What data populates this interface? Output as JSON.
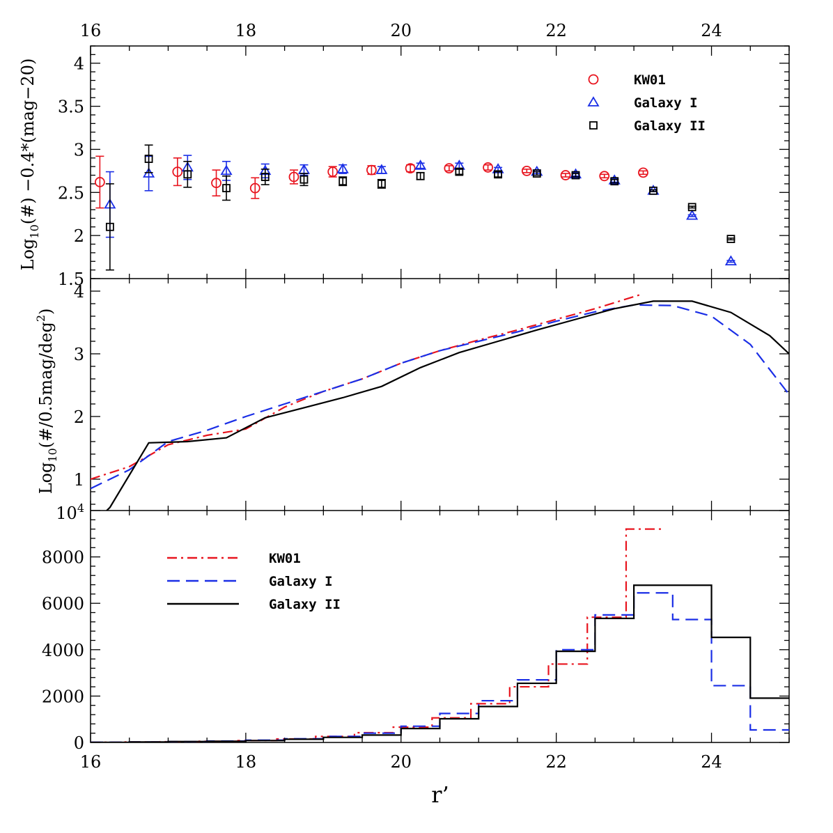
{
  "colors": {
    "kw01": "#e8141e",
    "galaxy1": "#1a2ee6",
    "galaxy2": "#000000"
  },
  "chart_data": [
    {
      "type": "scatter",
      "panel": "top",
      "ylabel": "Log10(#) −0.4*(mag−20)",
      "ylabel_parts": {
        "pre": "Log",
        "sub": "10",
        "post": "(#)  −0.4*(mag−20)"
      },
      "xlim": [
        16,
        25
      ],
      "ylim": [
        1.5,
        4.2
      ],
      "xticks": [
        16,
        18,
        20,
        22,
        24
      ],
      "yticks": [
        1.5,
        2,
        2.5,
        3,
        3.5,
        4
      ],
      "ytick_labels": [
        "1.5",
        "2",
        "2.5",
        "3",
        "3.5",
        "4"
      ],
      "legend": {
        "position": "top-right",
        "entries": [
          "KW01",
          "Galaxy I",
          "Galaxy II"
        ]
      },
      "series": [
        {
          "name": "KW01",
          "marker": "circle",
          "color_key": "kw01",
          "points": [
            {
              "x": 16.12,
              "y": 2.62,
              "err": 0.3
            },
            {
              "x": 17.12,
              "y": 2.74,
              "err": 0.16
            },
            {
              "x": 17.62,
              "y": 2.61,
              "err": 0.15
            },
            {
              "x": 18.12,
              "y": 2.55,
              "err": 0.12
            },
            {
              "x": 18.62,
              "y": 2.68,
              "err": 0.08
            },
            {
              "x": 19.12,
              "y": 2.74,
              "err": 0.06
            },
            {
              "x": 19.62,
              "y": 2.76,
              "err": 0.05
            },
            {
              "x": 20.12,
              "y": 2.78,
              "err": 0.04
            },
            {
              "x": 20.62,
              "y": 2.78,
              "err": 0.03
            },
            {
              "x": 21.12,
              "y": 2.79,
              "err": 0.03
            },
            {
              "x": 21.62,
              "y": 2.75,
              "err": 0.02
            },
            {
              "x": 22.12,
              "y": 2.7,
              "err": 0.02
            },
            {
              "x": 22.62,
              "y": 2.69,
              "err": 0.02
            },
            {
              "x": 23.12,
              "y": 2.73,
              "err": 0.02
            }
          ]
        },
        {
          "name": "Galaxy I",
          "marker": "triangle",
          "color_key": "galaxy1",
          "points": [
            {
              "x": 16.25,
              "y": 2.36,
              "err": 0.38
            },
            {
              "x": 16.75,
              "y": 2.72,
              "err": 0.2
            },
            {
              "x": 17.25,
              "y": 2.79,
              "err": 0.14
            },
            {
              "x": 17.75,
              "y": 2.75,
              "err": 0.11
            },
            {
              "x": 18.25,
              "y": 2.75,
              "err": 0.08
            },
            {
              "x": 18.75,
              "y": 2.76,
              "err": 0.06
            },
            {
              "x": 19.25,
              "y": 2.77,
              "err": 0.05
            },
            {
              "x": 19.75,
              "y": 2.76,
              "err": 0.04
            },
            {
              "x": 20.25,
              "y": 2.81,
              "err": 0.03
            },
            {
              "x": 20.75,
              "y": 2.81,
              "err": 0.03
            },
            {
              "x": 21.25,
              "y": 2.77,
              "err": 0.02
            },
            {
              "x": 21.75,
              "y": 2.74,
              "err": 0.02
            },
            {
              "x": 22.25,
              "y": 2.71,
              "err": 0.02
            },
            {
              "x": 22.75,
              "y": 2.64,
              "err": 0.02
            },
            {
              "x": 23.25,
              "y": 2.52,
              "err": 0.01
            },
            {
              "x": 23.75,
              "y": 2.23,
              "err": 0.01
            },
            {
              "x": 24.25,
              "y": 1.7,
              "err": 0.01
            }
          ]
        },
        {
          "name": "Galaxy II",
          "marker": "square",
          "color_key": "galaxy2",
          "points": [
            {
              "x": 16.25,
              "y": 2.1,
              "err": 0.5
            },
            {
              "x": 16.75,
              "y": 2.89,
              "err": 0.16
            },
            {
              "x": 17.25,
              "y": 2.71,
              "err": 0.15
            },
            {
              "x": 17.75,
              "y": 2.55,
              "err": 0.14
            },
            {
              "x": 18.25,
              "y": 2.68,
              "err": 0.09
            },
            {
              "x": 18.75,
              "y": 2.65,
              "err": 0.07
            },
            {
              "x": 19.25,
              "y": 2.63,
              "err": 0.05
            },
            {
              "x": 19.75,
              "y": 2.6,
              "err": 0.05
            },
            {
              "x": 20.25,
              "y": 2.69,
              "err": 0.04
            },
            {
              "x": 20.75,
              "y": 2.74,
              "err": 0.03
            },
            {
              "x": 21.25,
              "y": 2.71,
              "err": 0.03
            },
            {
              "x": 21.75,
              "y": 2.72,
              "err": 0.02
            },
            {
              "x": 22.25,
              "y": 2.7,
              "err": 0.02
            },
            {
              "x": 22.75,
              "y": 2.63,
              "err": 0.02
            },
            {
              "x": 23.25,
              "y": 2.52,
              "err": 0.01
            },
            {
              "x": 23.75,
              "y": 2.33,
              "err": 0.01
            },
            {
              "x": 24.25,
              "y": 1.96,
              "err": 0.01
            }
          ]
        }
      ]
    },
    {
      "type": "line",
      "panel": "middle",
      "ylabel": "Log10(#/0.5mag/deg2)",
      "ylabel_parts": {
        "pre": "Log",
        "sub": "10",
        "mid": "(#/0.5mag/deg",
        "sup": "2",
        "post": ")"
      },
      "xlim": [
        16,
        25
      ],
      "ylim": [
        0.5,
        4.2
      ],
      "yticks": [
        1,
        2,
        3,
        4
      ],
      "ytick_labels": [
        "1",
        "2",
        "3",
        "4"
      ],
      "series": [
        {
          "name": "KW01",
          "style": "dashdot",
          "color_key": "kw01",
          "x": [
            16,
            16.5,
            17,
            17.5,
            18,
            18.5,
            19,
            19.5,
            20,
            20.5,
            21,
            21.5,
            22,
            22.5,
            23.1
          ],
          "y": [
            1.0,
            1.2,
            1.55,
            1.7,
            1.8,
            2.15,
            2.4,
            2.6,
            2.85,
            3.05,
            3.22,
            3.38,
            3.55,
            3.72,
            3.95
          ]
        },
        {
          "name": "Galaxy I",
          "style": "dashed",
          "color_key": "galaxy1",
          "x": [
            16,
            16.5,
            17,
            17.5,
            18,
            18.5,
            19,
            19.5,
            20,
            20.5,
            21,
            21.5,
            22,
            22.5,
            23,
            23.5,
            24,
            24.5,
            25
          ],
          "y": [
            0.85,
            1.15,
            1.6,
            1.78,
            2.0,
            2.2,
            2.4,
            2.6,
            2.85,
            3.05,
            3.2,
            3.35,
            3.52,
            3.67,
            3.78,
            3.77,
            3.6,
            3.15,
            2.35
          ]
        },
        {
          "name": "Galaxy II",
          "style": "solid",
          "color_key": "galaxy2",
          "x": [
            16,
            16.25,
            16.75,
            17.25,
            17.75,
            18.25,
            18.75,
            19.25,
            19.75,
            20.25,
            20.75,
            21.25,
            21.75,
            22.25,
            22.75,
            23.25,
            23.75,
            24.25,
            24.75,
            25
          ],
          "y": [
            0.25,
            0.55,
            1.58,
            1.6,
            1.66,
            1.98,
            2.14,
            2.3,
            2.48,
            2.78,
            3.02,
            3.2,
            3.38,
            3.55,
            3.72,
            3.84,
            3.84,
            3.66,
            3.29,
            3.0
          ]
        }
      ]
    },
    {
      "type": "line",
      "panel": "bottom",
      "subtype": "step-histogram",
      "xlabel": "r’",
      "xlim": [
        16,
        25
      ],
      "ylim": [
        0,
        10000
      ],
      "top_label": "10",
      "top_label_sup": "4",
      "yticks": [
        0,
        2000,
        4000,
        6000,
        8000
      ],
      "ytick_labels": [
        "0",
        "2000",
        "4000",
        "6000",
        "8000"
      ],
      "xtick_labels": [
        "16",
        "18",
        "20",
        "22",
        "24"
      ],
      "legend": {
        "position": "top-left",
        "entries": [
          "KW01",
          "Galaxy I",
          "Galaxy II"
        ]
      },
      "series": [
        {
          "name": "KW01",
          "style": "dashdot",
          "color_key": "kw01",
          "edges": [
            16,
            16.4,
            16.9,
            17.4,
            17.9,
            18.4,
            18.9,
            19.4,
            19.9,
            20.4,
            20.9,
            21.4,
            21.9,
            22.4,
            22.9,
            23.4
          ],
          "values": [
            10,
            20,
            30,
            50,
            80,
            150,
            260,
            420,
            660,
            1060,
            1670,
            2400,
            3380,
            5400,
            9200
          ]
        },
        {
          "name": "Galaxy I",
          "style": "dashed",
          "color_key": "galaxy1",
          "edges": [
            16,
            16.5,
            17,
            17.5,
            18,
            18.5,
            19,
            19.5,
            20,
            20.5,
            21,
            21.5,
            22,
            22.5,
            23,
            23.5,
            24,
            24.5,
            25
          ],
          "values": [
            10,
            20,
            35,
            60,
            100,
            160,
            260,
            400,
            700,
            1250,
            1800,
            2700,
            4000,
            5500,
            6450,
            5300,
            2450,
            540
          ]
        },
        {
          "name": "Galaxy II",
          "style": "solid",
          "color_key": "galaxy2",
          "edges": [
            16,
            16.5,
            17,
            17.5,
            18,
            18.5,
            19,
            19.5,
            20,
            20.5,
            21,
            21.5,
            22,
            22.5,
            23,
            23.5,
            24,
            24.5,
            25
          ],
          "values": [
            5,
            20,
            40,
            50,
            80,
            140,
            220,
            320,
            600,
            1020,
            1550,
            2550,
            3930,
            5350,
            6780,
            6780,
            4530,
            1910
          ]
        }
      ]
    }
  ],
  "top_axis": {
    "xticks": [
      16,
      18,
      20,
      22,
      24
    ],
    "xtick_labels": [
      "16",
      "18",
      "20",
      "22",
      "24"
    ]
  }
}
